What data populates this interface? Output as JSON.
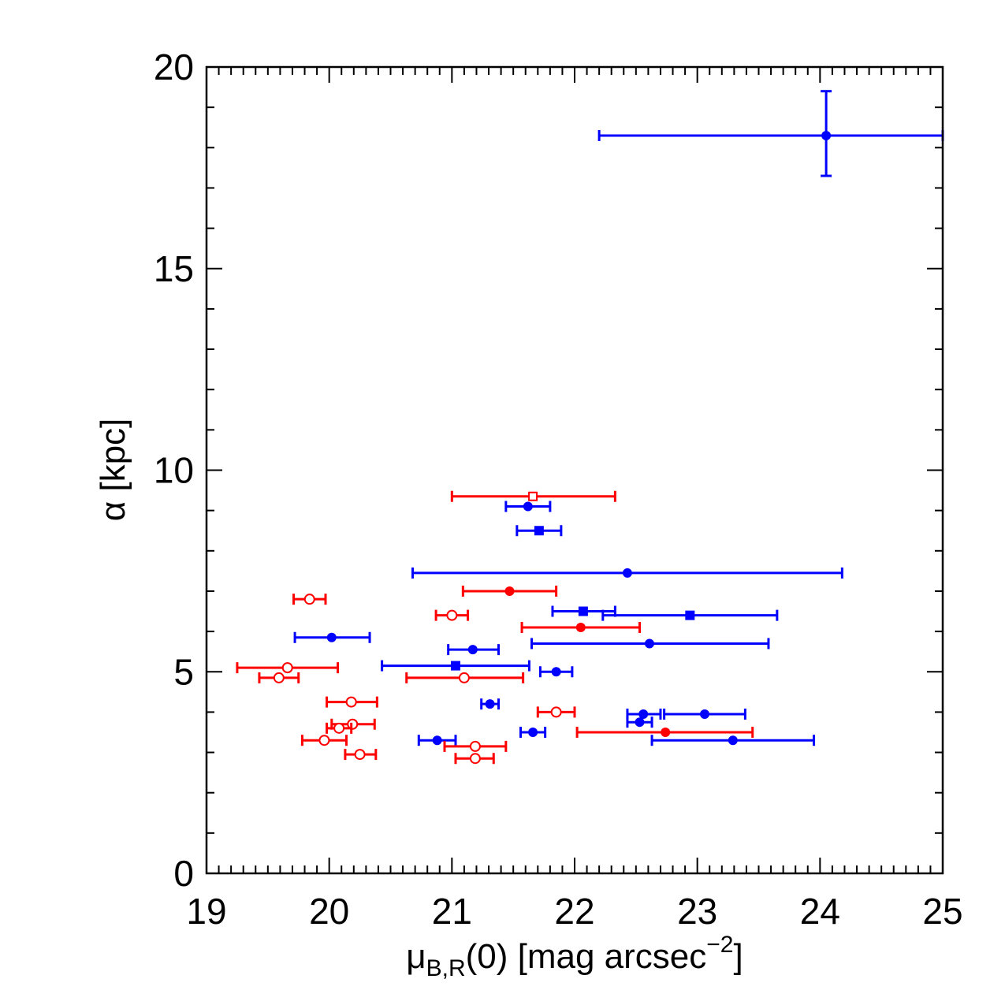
{
  "chart_data": {
    "type": "scatter",
    "title": "",
    "xlabel": {
      "main": "μ",
      "subscript": "B,R",
      "rest": "(0) [mag arcsec",
      "superscript": "−2",
      "close": "]"
    },
    "ylabel": "α [kpc]",
    "xlim": [
      19,
      25
    ],
    "ylim": [
      0,
      20
    ],
    "x_ticks": [
      {
        "v": 19,
        "label": "19"
      },
      {
        "v": 20,
        "label": "20"
      },
      {
        "v": 21,
        "label": "21"
      },
      {
        "v": 22,
        "label": "22"
      },
      {
        "v": 23,
        "label": "23"
      },
      {
        "v": 24,
        "label": "24"
      },
      {
        "v": 25,
        "label": "25"
      }
    ],
    "y_ticks": [
      {
        "v": 0,
        "label": "0"
      },
      {
        "v": 5,
        "label": "5"
      },
      {
        "v": 10,
        "label": "10"
      },
      {
        "v": 15,
        "label": "15"
      },
      {
        "v": 20,
        "label": "20"
      }
    ],
    "x_minor_step": 0.1,
    "y_minor_step": 1,
    "grid": false,
    "legend": "none",
    "series": [
      {
        "color": "#0000ff",
        "points": [
          {
            "x": 24.05,
            "y": 18.3,
            "xerr": [
              22.2,
              25.0
            ],
            "yerr": [
              17.3,
              19.4
            ],
            "marker": "filled-circle"
          },
          {
            "x": 21.62,
            "y": 9.1,
            "xerr": [
              21.44,
              21.8
            ],
            "marker": "filled-circle"
          },
          {
            "x": 21.71,
            "y": 8.5,
            "xerr": [
              21.53,
              21.89
            ],
            "marker": "filled-square"
          },
          {
            "x": 22.43,
            "y": 7.45,
            "xerr": [
              20.68,
              24.18
            ],
            "marker": "filled-circle"
          },
          {
            "x": 22.07,
            "y": 6.5,
            "xerr": [
              21.82,
              22.33
            ],
            "marker": "filled-square"
          },
          {
            "x": 22.94,
            "y": 6.4,
            "xerr": [
              22.23,
              23.65
            ],
            "marker": "filled-square"
          },
          {
            "x": 20.02,
            "y": 5.85,
            "xerr": [
              19.72,
              20.33
            ],
            "marker": "filled-circle"
          },
          {
            "x": 22.61,
            "y": 5.7,
            "xerr": [
              21.65,
              23.58
            ],
            "marker": "filled-circle"
          },
          {
            "x": 21.17,
            "y": 5.55,
            "xerr": [
              20.97,
              21.38
            ],
            "marker": "filled-circle"
          },
          {
            "x": 21.03,
            "y": 5.15,
            "xerr": [
              20.43,
              21.63
            ],
            "marker": "filled-square"
          },
          {
            "x": 21.85,
            "y": 5.0,
            "xerr": [
              21.72,
              21.98
            ],
            "marker": "filled-circle"
          },
          {
            "x": 21.31,
            "y": 4.2,
            "xerr": [
              21.24,
              21.38
            ],
            "marker": "filled-circle"
          },
          {
            "x": 22.56,
            "y": 3.95,
            "xerr": [
              22.43,
              22.7
            ],
            "marker": "filled-circle"
          },
          {
            "x": 23.06,
            "y": 3.95,
            "xerr": [
              22.73,
              23.39
            ],
            "marker": "filled-circle"
          },
          {
            "x": 22.53,
            "y": 3.75,
            "xerr": [
              22.43,
              22.63
            ],
            "marker": "filled-circle"
          },
          {
            "x": 21.66,
            "y": 3.5,
            "xerr": [
              21.56,
              21.76
            ],
            "marker": "filled-circle"
          },
          {
            "x": 20.88,
            "y": 3.3,
            "xerr": [
              20.73,
              21.03
            ],
            "marker": "filled-circle"
          },
          {
            "x": 23.29,
            "y": 3.3,
            "xerr": [
              22.63,
              23.95
            ],
            "marker": "filled-circle"
          }
        ]
      },
      {
        "color": "#ff0000",
        "points": [
          {
            "x": 21.66,
            "y": 9.35,
            "xerr": [
              21.0,
              22.33
            ],
            "marker": "open-square"
          },
          {
            "x": 21.47,
            "y": 7.0,
            "xerr": [
              21.09,
              21.85
            ],
            "marker": "filled-circle"
          },
          {
            "x": 19.84,
            "y": 6.8,
            "xerr": [
              19.71,
              19.97
            ],
            "marker": "open-circle"
          },
          {
            "x": 21.0,
            "y": 6.4,
            "xerr": [
              20.87,
              21.13
            ],
            "marker": "open-circle"
          },
          {
            "x": 22.05,
            "y": 6.1,
            "xerr": [
              21.57,
              22.53
            ],
            "marker": "filled-circle"
          },
          {
            "x": 19.66,
            "y": 5.1,
            "xerr": [
              19.25,
              20.07
            ],
            "marker": "open-circle"
          },
          {
            "x": 19.59,
            "y": 4.85,
            "xerr": [
              19.43,
              19.75
            ],
            "marker": "open-circle"
          },
          {
            "x": 21.1,
            "y": 4.85,
            "xerr": [
              20.63,
              21.58
            ],
            "marker": "open-circle"
          },
          {
            "x": 20.18,
            "y": 4.25,
            "xerr": [
              19.98,
              20.39
            ],
            "marker": "open-circle"
          },
          {
            "x": 21.85,
            "y": 4.0,
            "xerr": [
              21.7,
              22.0
            ],
            "marker": "open-circle"
          },
          {
            "x": 20.19,
            "y": 3.7,
            "xerr": [
              20.02,
              20.37
            ],
            "marker": "open-circle"
          },
          {
            "x": 20.08,
            "y": 3.6,
            "xerr": [
              19.98,
              20.18
            ],
            "marker": "open-circle"
          },
          {
            "x": 22.74,
            "y": 3.5,
            "xerr": [
              22.02,
              23.45
            ],
            "marker": "filled-circle"
          },
          {
            "x": 19.96,
            "y": 3.3,
            "xerr": [
              19.78,
              20.14
            ],
            "marker": "open-circle"
          },
          {
            "x": 21.19,
            "y": 3.15,
            "xerr": [
              20.94,
              21.44
            ],
            "marker": "open-circle"
          },
          {
            "x": 20.25,
            "y": 2.95,
            "xerr": [
              20.13,
              20.38
            ],
            "marker": "open-circle"
          },
          {
            "x": 21.19,
            "y": 2.85,
            "xerr": [
              21.03,
              21.34
            ],
            "marker": "open-circle"
          }
        ]
      }
    ]
  }
}
